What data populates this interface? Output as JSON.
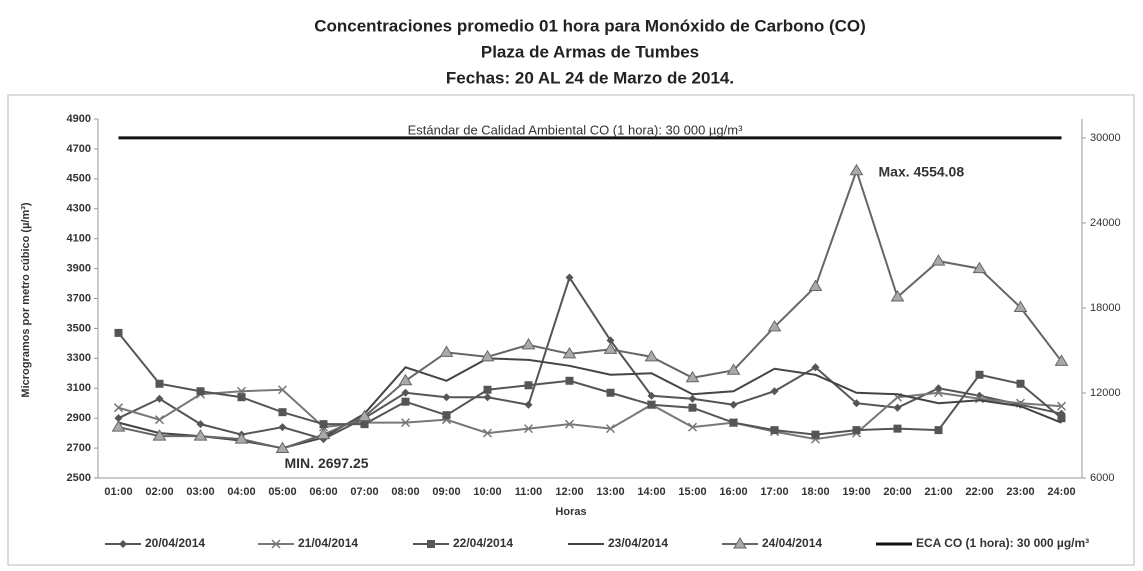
{
  "chart_data": {
    "type": "line",
    "title": [
      "Concentraciones promedio 01 hora para Monóxido de Carbono (CO)",
      "Plaza de Armas de Tumbes",
      "Fechas: 20 AL 24 de  Marzo de 2014."
    ],
    "x_label": "Horas",
    "y_label": "Microgramos por metro cúbico (µ/m³)",
    "categories": [
      "01:00",
      "02:00",
      "03:00",
      "04:00",
      "05:00",
      "06:00",
      "07:00",
      "08:00",
      "09:00",
      "10:00",
      "11:00",
      "12:00",
      "13:00",
      "14:00",
      "15:00",
      "16:00",
      "17:00",
      "18:00",
      "19:00",
      "20:00",
      "21:00",
      "22:00",
      "23:00",
      "24:00"
    ],
    "series": [
      {
        "name": "20/04/2014",
        "color": "#555555",
        "marker": "diamond",
        "values": [
          2900,
          3030,
          2860,
          2790,
          2840,
          2760,
          2900,
          3070,
          3040,
          3040,
          2990,
          3840,
          3420,
          3050,
          3030,
          2990,
          3080,
          3240,
          3000,
          2970,
          3100,
          3050,
          2990,
          2930
        ]
      },
      {
        "name": "21/04/2014",
        "color": "#777777",
        "marker": "x",
        "values": [
          2970,
          2890,
          3060,
          3080,
          3090,
          2840,
          2870,
          2870,
          2890,
          2800,
          2830,
          2860,
          2830,
          2990,
          2840,
          2870,
          2810,
          2760,
          2800,
          3040,
          3070,
          3030,
          3000,
          2980
        ]
      },
      {
        "name": "22/04/2014",
        "color": "#555555",
        "marker": "square",
        "values": [
          3470,
          3130,
          3080,
          3040,
          2940,
          2860,
          2860,
          3010,
          2920,
          3090,
          3120,
          3150,
          3070,
          2990,
          2970,
          2870,
          2820,
          2790,
          2820,
          2830,
          2820,
          3190,
          3130,
          2900
        ]
      },
      {
        "name": "23/04/2014",
        "color": "#444444",
        "marker": "none",
        "values": [
          2870,
          2800,
          2780,
          2750,
          2700,
          2770,
          2930,
          3240,
          3150,
          3300,
          3290,
          3250,
          3190,
          3200,
          3060,
          3080,
          3230,
          3190,
          3070,
          3060,
          3000,
          3020,
          2980,
          2870
        ]
      },
      {
        "name": "24/04/2014",
        "color": "#666666",
        "marker": "triangle",
        "values": [
          2840,
          2780,
          2780,
          2760,
          2697.25,
          2790,
          2910,
          3150,
          3340,
          3310,
          3390,
          3330,
          3360,
          3310,
          3170,
          3220,
          3510,
          3780,
          4554.08,
          3710,
          3950,
          3900,
          3640,
          3280
        ]
      },
      {
        "name": "ECA CO (1 hora): 30 000 µg/m³",
        "color": "#111111",
        "marker": "none",
        "axis": "y2",
        "values": [
          30000,
          30000,
          30000,
          30000,
          30000,
          30000,
          30000,
          30000,
          30000,
          30000,
          30000,
          30000,
          30000,
          30000,
          30000,
          30000,
          30000,
          30000,
          30000,
          30000,
          30000,
          30000,
          30000,
          30000
        ]
      }
    ],
    "annotations": [
      "Estándar de Calidad Ambiental  CO (1 hora): 30 000 µg/m³",
      "Max. 4554.08",
      "MIN. 2697.25"
    ],
    "ylim": [
      2500,
      4900
    ],
    "yticks": [
      2500,
      2700,
      2900,
      3100,
      3300,
      3500,
      3700,
      3900,
      4100,
      4300,
      4500,
      4700,
      4900
    ],
    "y2lim": [
      6000,
      31333
    ],
    "y2ticks": [
      6000,
      12000,
      18000,
      24000,
      30000
    ],
    "legend": "bottom"
  }
}
